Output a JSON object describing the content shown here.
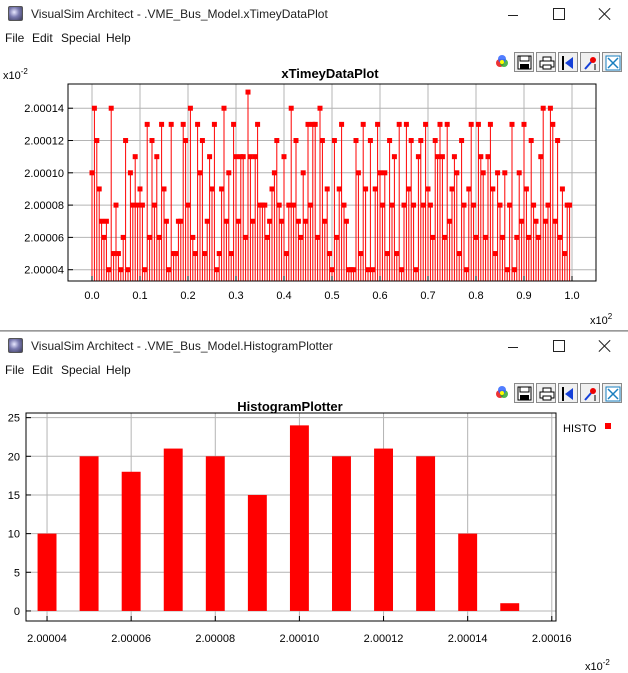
{
  "windows": [
    {
      "title": "VisualSim Architect - .VME_Bus_Model.xTimeyDataPlot",
      "menu": [
        "File",
        "Edit",
        "Special",
        "Help"
      ],
      "toolbar_icons": [
        "fill-icon",
        "save-icon",
        "print-icon",
        "reset-axes-icon",
        "format-icon",
        "zoom-fit-icon"
      ]
    },
    {
      "title": "VisualSim Architect - .VME_Bus_Model.HistogramPlotter",
      "menu": [
        "File",
        "Edit",
        "Special",
        "Help"
      ],
      "toolbar_icons": [
        "fill-icon",
        "save-icon",
        "print-icon",
        "reset-axes-icon",
        "format-icon",
        "zoom-fit-icon"
      ]
    }
  ],
  "colors": {
    "series": "#ff0000",
    "grid": "#b4b4b4",
    "frame": "#000000"
  },
  "chart_data": [
    {
      "type": "scatter",
      "title": "xTimeyDataPlot",
      "x_exponent_label": "x10",
      "x_exponent": "2",
      "y_exponent_label": "x10",
      "y_exponent": "-2",
      "xlim": [
        -0.05,
        1.05
      ],
      "ylim": [
        2.000033,
        2.000155
      ],
      "x_ticks": [
        0.0,
        0.1,
        0.2,
        0.3,
        0.4,
        0.5,
        0.6,
        0.7,
        0.8,
        0.9,
        1.0
      ],
      "x_tick_labels": [
        "0.0",
        "0.1",
        "0.2",
        "0.3",
        "0.4",
        "0.5",
        "0.6",
        "0.7",
        "0.8",
        "0.9",
        "1.0"
      ],
      "y_ticks": [
        2.00004,
        2.00006,
        2.00008,
        2.0001,
        2.00012,
        2.00014
      ],
      "y_tick_labels": [
        "2.00004",
        "2.00006",
        "2.00008",
        "2.00010",
        "2.00012",
        "2.00014"
      ],
      "grid": true,
      "impulses": true,
      "points": [
        [
          0.0,
          2.0001
        ],
        [
          0.005,
          2.00014
        ],
        [
          0.01,
          2.00012
        ],
        [
          0.015,
          2.00009
        ],
        [
          0.02,
          2.00007
        ],
        [
          0.025,
          2.00006
        ],
        [
          0.03,
          2.00007
        ],
        [
          0.035,
          2.00004
        ],
        [
          0.04,
          2.00014
        ],
        [
          0.045,
          2.00005
        ],
        [
          0.05,
          2.00008
        ],
        [
          0.055,
          2.00005
        ],
        [
          0.06,
          2.00004
        ],
        [
          0.065,
          2.00006
        ],
        [
          0.07,
          2.00012
        ],
        [
          0.075,
          2.00004
        ],
        [
          0.08,
          2.0001
        ],
        [
          0.085,
          2.00008
        ],
        [
          0.09,
          2.00011
        ],
        [
          0.095,
          2.00008
        ],
        [
          0.1,
          2.00009
        ],
        [
          0.105,
          2.00008
        ],
        [
          0.11,
          2.00004
        ],
        [
          0.115,
          2.00013
        ],
        [
          0.12,
          2.00006
        ],
        [
          0.125,
          2.00012
        ],
        [
          0.13,
          2.00008
        ],
        [
          0.135,
          2.00011
        ],
        [
          0.14,
          2.00006
        ],
        [
          0.145,
          2.00013
        ],
        [
          0.15,
          2.00009
        ],
        [
          0.155,
          2.00007
        ],
        [
          0.16,
          2.00004
        ],
        [
          0.165,
          2.00013
        ],
        [
          0.17,
          2.00005
        ],
        [
          0.175,
          2.00005
        ],
        [
          0.18,
          2.00007
        ],
        [
          0.185,
          2.00007
        ],
        [
          0.19,
          2.00013
        ],
        [
          0.195,
          2.00012
        ],
        [
          0.2,
          2.00008
        ],
        [
          0.205,
          2.00014
        ],
        [
          0.21,
          2.00006
        ],
        [
          0.215,
          2.00005
        ],
        [
          0.22,
          2.00013
        ],
        [
          0.225,
          2.0001
        ],
        [
          0.23,
          2.00012
        ],
        [
          0.235,
          2.00005
        ],
        [
          0.24,
          2.00007
        ],
        [
          0.245,
          2.00011
        ],
        [
          0.25,
          2.00009
        ],
        [
          0.255,
          2.00013
        ],
        [
          0.26,
          2.00004
        ],
        [
          0.265,
          2.00005
        ],
        [
          0.27,
          2.00009
        ],
        [
          0.275,
          2.00014
        ],
        [
          0.28,
          2.00007
        ],
        [
          0.285,
          2.0001
        ],
        [
          0.29,
          2.00005
        ],
        [
          0.295,
          2.00013
        ],
        [
          0.3,
          2.00011
        ],
        [
          0.305,
          2.00007
        ],
        [
          0.31,
          2.00011
        ],
        [
          0.315,
          2.00011
        ],
        [
          0.32,
          2.00006
        ],
        [
          0.325,
          2.00015
        ],
        [
          0.33,
          2.00011
        ],
        [
          0.335,
          2.00007
        ],
        [
          0.34,
          2.00011
        ],
        [
          0.345,
          2.00013
        ],
        [
          0.35,
          2.00008
        ],
        [
          0.355,
          2.00008
        ],
        [
          0.36,
          2.00008
        ],
        [
          0.365,
          2.00006
        ],
        [
          0.37,
          2.00007
        ],
        [
          0.375,
          2.00009
        ],
        [
          0.38,
          2.0001
        ],
        [
          0.385,
          2.00012
        ],
        [
          0.39,
          2.00008
        ],
        [
          0.395,
          2.00007
        ],
        [
          0.4,
          2.00011
        ],
        [
          0.405,
          2.00005
        ],
        [
          0.41,
          2.00008
        ],
        [
          0.415,
          2.00014
        ],
        [
          0.42,
          2.00008
        ],
        [
          0.425,
          2.00012
        ],
        [
          0.43,
          2.00007
        ],
        [
          0.435,
          2.00006
        ],
        [
          0.44,
          2.0001
        ],
        [
          0.445,
          2.00007
        ],
        [
          0.45,
          2.00013
        ],
        [
          0.455,
          2.00008
        ],
        [
          0.46,
          2.00013
        ],
        [
          0.465,
          2.00013
        ],
        [
          0.47,
          2.00006
        ],
        [
          0.475,
          2.00014
        ],
        [
          0.48,
          2.00012
        ],
        [
          0.485,
          2.00007
        ],
        [
          0.49,
          2.00009
        ],
        [
          0.495,
          2.00005
        ],
        [
          0.5,
          2.00004
        ],
        [
          0.505,
          2.00012
        ],
        [
          0.51,
          2.00006
        ],
        [
          0.515,
          2.00009
        ],
        [
          0.52,
          2.00013
        ],
        [
          0.525,
          2.00008
        ],
        [
          0.53,
          2.00007
        ],
        [
          0.535,
          2.00004
        ],
        [
          0.54,
          2.00004
        ],
        [
          0.545,
          2.00004
        ],
        [
          0.55,
          2.00012
        ],
        [
          0.555,
          2.0001
        ],
        [
          0.56,
          2.00005
        ],
        [
          0.565,
          2.00013
        ],
        [
          0.57,
          2.00009
        ],
        [
          0.575,
          2.00004
        ],
        [
          0.58,
          2.00012
        ],
        [
          0.585,
          2.00004
        ],
        [
          0.59,
          2.00009
        ],
        [
          0.595,
          2.00013
        ],
        [
          0.6,
          2.0001
        ],
        [
          0.605,
          2.00008
        ],
        [
          0.61,
          2.0001
        ],
        [
          0.615,
          2.00005
        ],
        [
          0.62,
          2.00012
        ],
        [
          0.625,
          2.00008
        ],
        [
          0.63,
          2.00011
        ],
        [
          0.635,
          2.00005
        ],
        [
          0.64,
          2.00013
        ],
        [
          0.645,
          2.00004
        ],
        [
          0.65,
          2.00008
        ],
        [
          0.655,
          2.00013
        ],
        [
          0.66,
          2.00009
        ],
        [
          0.665,
          2.00012
        ],
        [
          0.67,
          2.00008
        ],
        [
          0.675,
          2.00004
        ],
        [
          0.68,
          2.00011
        ],
        [
          0.685,
          2.00012
        ],
        [
          0.69,
          2.00008
        ],
        [
          0.695,
          2.00013
        ],
        [
          0.7,
          2.00009
        ],
        [
          0.705,
          2.00008
        ],
        [
          0.71,
          2.00006
        ],
        [
          0.715,
          2.00012
        ],
        [
          0.72,
          2.00011
        ],
        [
          0.725,
          2.00013
        ],
        [
          0.73,
          2.00011
        ],
        [
          0.735,
          2.00006
        ],
        [
          0.74,
          2.00013
        ],
        [
          0.745,
          2.00007
        ],
        [
          0.75,
          2.00009
        ],
        [
          0.755,
          2.00011
        ],
        [
          0.76,
          2.0001
        ],
        [
          0.765,
          2.00005
        ],
        [
          0.77,
          2.00012
        ],
        [
          0.775,
          2.00008
        ],
        [
          0.78,
          2.00004
        ],
        [
          0.785,
          2.00009
        ],
        [
          0.79,
          2.00013
        ],
        [
          0.795,
          2.00008
        ],
        [
          0.8,
          2.00006
        ],
        [
          0.805,
          2.00013
        ],
        [
          0.81,
          2.00011
        ],
        [
          0.815,
          2.0001
        ],
        [
          0.82,
          2.00006
        ],
        [
          0.825,
          2.00011
        ],
        [
          0.83,
          2.00013
        ],
        [
          0.835,
          2.00009
        ],
        [
          0.84,
          2.00005
        ],
        [
          0.845,
          2.0001
        ],
        [
          0.85,
          2.00008
        ],
        [
          0.855,
          2.00006
        ],
        [
          0.86,
          2.0001
        ],
        [
          0.865,
          2.00004
        ],
        [
          0.87,
          2.00008
        ],
        [
          0.875,
          2.00013
        ],
        [
          0.88,
          2.00004
        ],
        [
          0.885,
          2.00006
        ],
        [
          0.89,
          2.0001
        ],
        [
          0.895,
          2.00007
        ],
        [
          0.9,
          2.00013
        ],
        [
          0.905,
          2.00009
        ],
        [
          0.91,
          2.00006
        ],
        [
          0.915,
          2.00012
        ],
        [
          0.92,
          2.00008
        ],
        [
          0.925,
          2.00007
        ],
        [
          0.93,
          2.00006
        ],
        [
          0.935,
          2.00011
        ],
        [
          0.94,
          2.00014
        ],
        [
          0.945,
          2.00007
        ],
        [
          0.95,
          2.00008
        ],
        [
          0.955,
          2.00014
        ],
        [
          0.96,
          2.00013
        ],
        [
          0.965,
          2.00007
        ],
        [
          0.97,
          2.00012
        ],
        [
          0.975,
          2.00006
        ],
        [
          0.98,
          2.00009
        ],
        [
          0.985,
          2.00005
        ],
        [
          0.99,
          2.00008
        ],
        [
          0.995,
          2.00008
        ]
      ]
    },
    {
      "type": "bar",
      "title": "HistogramPlotter",
      "x_exponent_label": "x10",
      "x_exponent": "-2",
      "legend": {
        "label": "HISTO",
        "position": "top-right"
      },
      "series": [
        {
          "name": "HISTO",
          "x": [
            2.00004,
            2.00005,
            2.00006,
            2.00007,
            2.00008,
            2.00009,
            2.0001,
            2.00011,
            2.00012,
            2.00013,
            2.00014,
            2.00015
          ],
          "values": [
            10,
            20,
            18,
            21,
            20,
            15,
            24,
            20,
            21,
            20,
            10,
            1
          ]
        }
      ],
      "bar_width": 4.5e-06,
      "xlim": [
        2.000035,
        2.000161
      ],
      "ylim": [
        -1.3,
        25.6
      ],
      "x_ticks": [
        2.00004,
        2.00006,
        2.00008,
        2.0001,
        2.00012,
        2.00014,
        2.00016
      ],
      "x_tick_labels": [
        "2.00004",
        "2.00006",
        "2.00008",
        "2.00010",
        "2.00012",
        "2.00014",
        "2.00016"
      ],
      "y_ticks": [
        0,
        5,
        10,
        15,
        20,
        25
      ],
      "y_tick_labels": [
        "0",
        "5",
        "10",
        "15",
        "20",
        "25"
      ],
      "grid": true
    }
  ]
}
